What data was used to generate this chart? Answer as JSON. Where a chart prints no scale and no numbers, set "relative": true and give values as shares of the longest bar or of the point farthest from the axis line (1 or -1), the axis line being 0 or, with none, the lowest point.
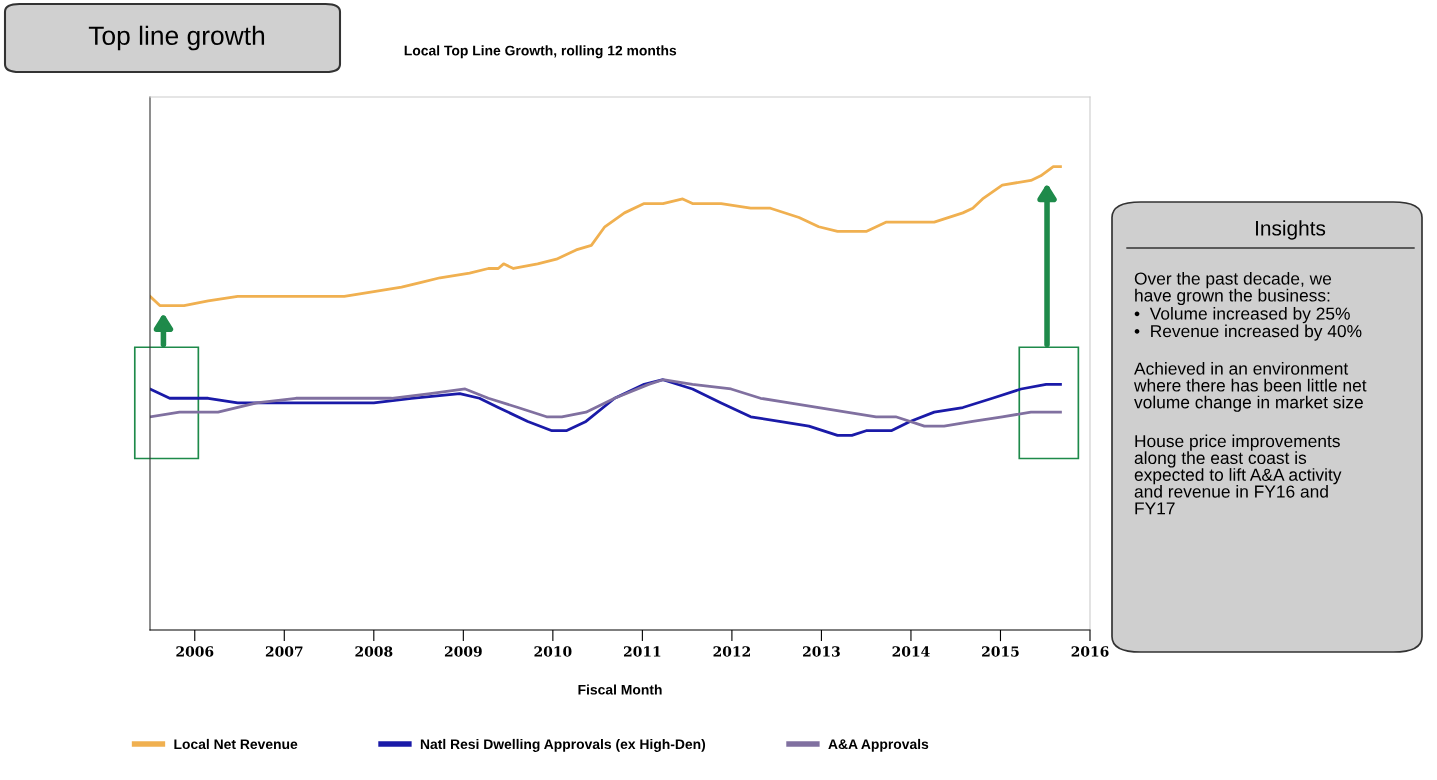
{
  "chart_data": {
    "type": "line",
    "title": "Local Top Line Growth, rolling 12 months",
    "xlabel": "Fiscal Month",
    "relative": true,
    "legend": "bottom",
    "grid": false,
    "xlim": [
      2005.5,
      2016.0
    ],
    "xticks": [
      2006,
      2007,
      2008,
      2009,
      2010,
      2011,
      2012,
      2013,
      2014,
      2015,
      2016
    ],
    "series": [
      {
        "name": "Local Net Revenue",
        "color": "#f0b050",
        "x": [
          2005.5,
          2005.61,
          2005.88,
          2006.15,
          2006.48,
          2006.8,
          2007.13,
          2007.67,
          2008.0,
          2008.31,
          2008.53,
          2008.74,
          2009.07,
          2009.28,
          2009.39,
          2009.45,
          2009.56,
          2009.83,
          2010.04,
          2010.26,
          2010.43,
          2010.58,
          2010.8,
          2011.02,
          2011.23,
          2011.45,
          2011.56,
          2011.88,
          2012.21,
          2012.43,
          2012.75,
          2012.97,
          2013.18,
          2013.5,
          2013.72,
          2013.93,
          2014.26,
          2014.58,
          2014.69,
          2014.8,
          2015.02,
          2015.34,
          2015.45,
          2015.59,
          2015.67
        ],
        "values": [
          0.72,
          0.7,
          0.7,
          0.71,
          0.72,
          0.72,
          0.72,
          0.72,
          0.73,
          0.74,
          0.75,
          0.76,
          0.77,
          0.78,
          0.78,
          0.79,
          0.78,
          0.79,
          0.8,
          0.82,
          0.83,
          0.87,
          0.9,
          0.92,
          0.92,
          0.93,
          0.92,
          0.92,
          0.91,
          0.91,
          0.89,
          0.87,
          0.86,
          0.86,
          0.88,
          0.88,
          0.88,
          0.9,
          0.91,
          0.93,
          0.96,
          0.97,
          0.98,
          1.0,
          1.0
        ]
      },
      {
        "name": "Natl Resi Dwelling Approvals (ex High-Den)",
        "color": "#1a1aa8",
        "x": [
          2005.5,
          2005.72,
          2005.93,
          2006.15,
          2006.48,
          2006.8,
          2007.13,
          2007.67,
          2008.0,
          2008.42,
          2008.96,
          2009.18,
          2009.39,
          2009.72,
          2009.99,
          2010.15,
          2010.37,
          2010.69,
          2011.02,
          2011.23,
          2011.56,
          2011.88,
          2012.21,
          2012.53,
          2012.86,
          2013.18,
          2013.34,
          2013.5,
          2013.78,
          2013.99,
          2014.26,
          2014.58,
          2014.91,
          2015.23,
          2015.51,
          2015.67
        ],
        "values": [
          0.52,
          0.5,
          0.5,
          0.5,
          0.49,
          0.49,
          0.49,
          0.49,
          0.49,
          0.5,
          0.51,
          0.5,
          0.48,
          0.45,
          0.43,
          0.43,
          0.45,
          0.5,
          0.53,
          0.54,
          0.52,
          0.49,
          0.46,
          0.45,
          0.44,
          0.42,
          0.42,
          0.43,
          0.43,
          0.45,
          0.47,
          0.48,
          0.5,
          0.52,
          0.53,
          0.53
        ]
      },
      {
        "name": "A&A Approvals",
        "color": "#8070a0",
        "x": [
          2005.5,
          2005.83,
          2006.26,
          2006.69,
          2007.13,
          2007.67,
          2008.2,
          2008.63,
          2009.02,
          2009.28,
          2009.61,
          2009.93,
          2010.1,
          2010.37,
          2010.69,
          2011.07,
          2011.23,
          2011.56,
          2011.99,
          2012.32,
          2012.64,
          2012.97,
          2013.28,
          2013.61,
          2013.83,
          2014.15,
          2014.37,
          2014.69,
          2015.02,
          2015.34,
          2015.67
        ],
        "values": [
          0.46,
          0.47,
          0.47,
          0.49,
          0.5,
          0.5,
          0.5,
          0.51,
          0.52,
          0.5,
          0.48,
          0.46,
          0.46,
          0.47,
          0.5,
          0.53,
          0.54,
          0.53,
          0.52,
          0.5,
          0.49,
          0.48,
          0.47,
          0.46,
          0.46,
          0.44,
          0.44,
          0.45,
          0.46,
          0.47,
          0.47
        ]
      }
    ],
    "annotations": [
      "Top line growth",
      "Insights",
      "Over the past decade, we\nhave grown the business:",
      "•  Volume increased by 25%",
      "•  Revenue increased by 40%",
      "Achieved in an environment\nwhere there has been little net\nvolume change in market size",
      "House price improvements\nalong the east coast is\nexpected to lift A&A activity\nand revenue in FY16 and\nFY17"
    ]
  }
}
